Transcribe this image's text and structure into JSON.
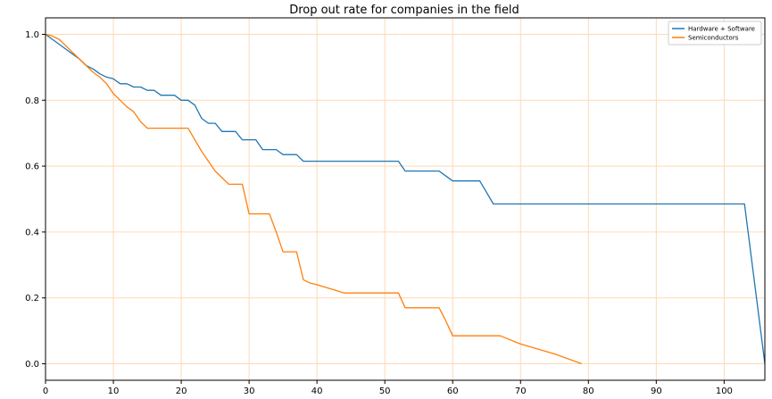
{
  "chart_data": {
    "type": "line",
    "title": "Drop out rate for companies in the field",
    "xlabel": "",
    "ylabel": "",
    "xlim": [
      0,
      106
    ],
    "ylim": [
      -0.05,
      1.05
    ],
    "xticks": [
      0,
      10,
      20,
      30,
      40,
      50,
      60,
      70,
      80,
      90,
      100
    ],
    "xtick_labels": [
      "0",
      "10",
      "20",
      "30",
      "40",
      "50",
      "60",
      "70",
      "80",
      "90",
      "100"
    ],
    "yticks": [
      0.0,
      0.2,
      0.4,
      0.6,
      0.8,
      1.0
    ],
    "ytick_labels": [
      "0.0",
      "0.2",
      "0.4",
      "0.6",
      "0.8",
      "1.0"
    ],
    "grid": true,
    "grid_color": "#ffd9b3",
    "legend_position": "top-right",
    "series": [
      {
        "name": "Hardware + Software",
        "color": "#1f77b4",
        "x": [
          0,
          1,
          2,
          3,
          4,
          5,
          6,
          7,
          8,
          9,
          10,
          11,
          12,
          13,
          14,
          15,
          16,
          17,
          18,
          19,
          20,
          21,
          22,
          23,
          24,
          25,
          26,
          27,
          28,
          29,
          30,
          31,
          32,
          33,
          34,
          35,
          36,
          37,
          38,
          39,
          40,
          45,
          50,
          52,
          53,
          54,
          55,
          56,
          57,
          58,
          59,
          60,
          61,
          62,
          63,
          64,
          65,
          66,
          67,
          70,
          80,
          90,
          100,
          103,
          106
        ],
        "y": [
          1.0,
          0.985,
          0.97,
          0.955,
          0.94,
          0.925,
          0.905,
          0.895,
          0.88,
          0.87,
          0.865,
          0.85,
          0.85,
          0.84,
          0.84,
          0.83,
          0.83,
          0.815,
          0.815,
          0.815,
          0.8,
          0.8,
          0.785,
          0.745,
          0.73,
          0.73,
          0.705,
          0.705,
          0.705,
          0.68,
          0.68,
          0.68,
          0.65,
          0.65,
          0.65,
          0.635,
          0.635,
          0.635,
          0.615,
          0.615,
          0.615,
          0.615,
          0.615,
          0.615,
          0.585,
          0.585,
          0.585,
          0.585,
          0.585,
          0.585,
          0.57,
          0.555,
          0.555,
          0.555,
          0.555,
          0.555,
          0.52,
          0.485,
          0.485,
          0.485,
          0.485,
          0.485,
          0.485,
          0.485,
          0.0
        ]
      },
      {
        "name": "Semiconductors",
        "color": "#ff7f0e",
        "x": [
          0,
          1,
          2,
          3,
          4,
          5,
          6,
          7,
          8,
          9,
          10,
          11,
          12,
          13,
          14,
          15,
          16,
          17,
          18,
          19,
          20,
          21,
          22,
          23,
          24,
          25,
          26,
          27,
          28,
          29,
          30,
          31,
          32,
          33,
          34,
          35,
          36,
          37,
          38,
          39,
          40,
          44,
          50,
          52,
          53,
          54,
          55,
          56,
          57,
          58,
          59,
          60,
          61,
          62,
          63,
          64,
          65,
          66,
          67,
          70,
          75,
          79
        ],
        "y": [
          1.0,
          0.995,
          0.985,
          0.965,
          0.945,
          0.925,
          0.905,
          0.885,
          0.87,
          0.85,
          0.82,
          0.8,
          0.78,
          0.765,
          0.735,
          0.715,
          0.715,
          0.715,
          0.715,
          0.715,
          0.715,
          0.715,
          0.68,
          0.645,
          0.615,
          0.585,
          0.565,
          0.545,
          0.545,
          0.545,
          0.455,
          0.455,
          0.455,
          0.455,
          0.4,
          0.34,
          0.34,
          0.34,
          0.255,
          0.245,
          0.24,
          0.215,
          0.215,
          0.215,
          0.17,
          0.17,
          0.17,
          0.17,
          0.17,
          0.17,
          0.13,
          0.085,
          0.085,
          0.085,
          0.085,
          0.085,
          0.085,
          0.085,
          0.085,
          0.06,
          0.03,
          0.0
        ]
      }
    ]
  }
}
